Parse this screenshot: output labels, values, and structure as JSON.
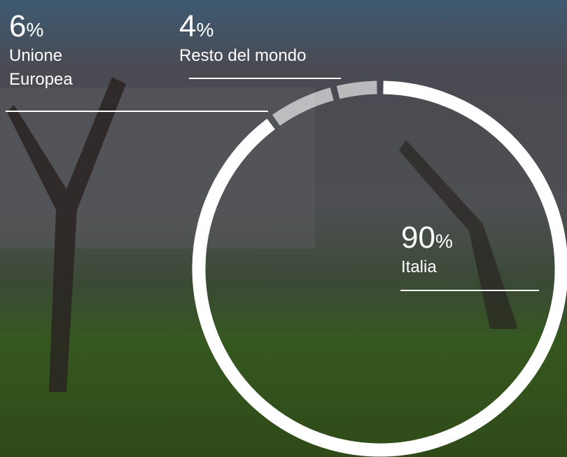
{
  "chart_data": {
    "type": "donut",
    "categories": [
      "Italia",
      "Unione Europea",
      "Resto del mondo"
    ],
    "values": [
      90,
      6,
      4
    ],
    "unit": "%",
    "colors": [
      "#ffffff",
      "rgba(255,255,255,0.62)",
      "rgba(255,255,255,0.62)"
    ]
  }
}
